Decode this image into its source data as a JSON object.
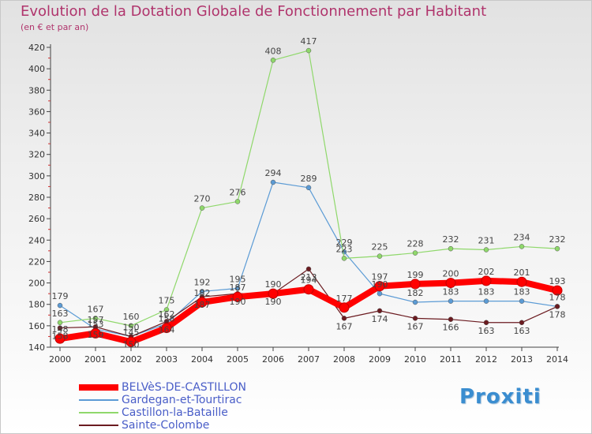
{
  "title": "Evolution de la Dotation Globale de Fonctionnement par Habitant",
  "subtitle": "(en € et par an)",
  "logo": "Proxiti",
  "chart_data": {
    "type": "line",
    "title": "Evolution de la Dotation Globale de Fonctionnement par Habitant",
    "ylabel": "(en € et par an)",
    "xlabel": "",
    "x": [
      "2000",
      "2001",
      "2002",
      "2003",
      "2004",
      "2005",
      "2006",
      "2007",
      "2008",
      "2009",
      "2010",
      "2011",
      "2012",
      "2013",
      "2014"
    ],
    "ylim": [
      140,
      420
    ],
    "yticks": [
      140,
      160,
      180,
      200,
      220,
      240,
      260,
      280,
      300,
      320,
      340,
      360,
      380,
      400,
      420
    ],
    "grid": false,
    "legend_position": "bottom-left",
    "series": [
      {
        "name": "BELVèS-DE-CASTILLON",
        "color": "#ff0000",
        "width": 8,
        "label_position": "above",
        "values": [
          148,
          153,
          145,
          158,
          182,
          187,
          190,
          194,
          177,
          197,
          199,
          200,
          202,
          201,
          193
        ]
      },
      {
        "name": "Gardegan-et-Tourtirac",
        "color": "#5b9bd5",
        "width": 1.2,
        "label_position": "above",
        "values": [
          179,
          157,
          150,
          162,
          192,
          195,
          294,
          289,
          229,
          190,
          182,
          183,
          183,
          183,
          178
        ]
      },
      {
        "name": "Castillon-la-Bataille",
        "color": "#8fd86b",
        "width": 1.2,
        "label_position": "above",
        "values": [
          163,
          167,
          160,
          175,
          270,
          276,
          408,
          417,
          223,
          225,
          228,
          232,
          231,
          234,
          232
        ]
      },
      {
        "name": "Sainte-Colombe",
        "color": "#6b1b20",
        "width": 1.2,
        "label_position": "below",
        "values": [
          158,
          159,
          150,
          164,
          187,
          190,
          190,
          213,
          167,
          174,
          167,
          166,
          163,
          163,
          178
        ]
      }
    ]
  }
}
